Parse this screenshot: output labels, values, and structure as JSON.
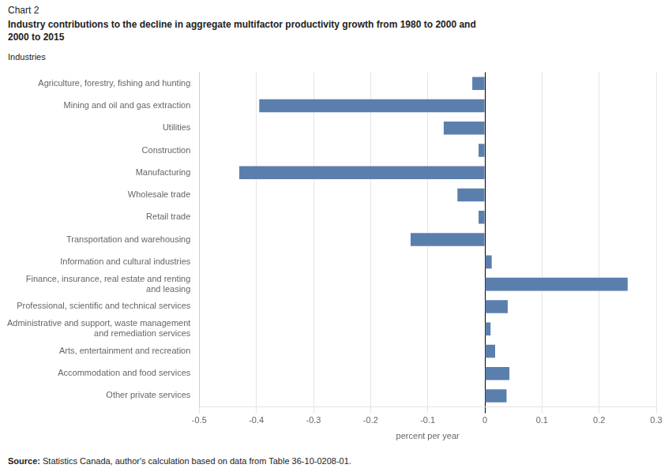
{
  "chart_data": {
    "type": "bar",
    "orientation": "horizontal",
    "title": "Chart 2",
    "subtitle": "Industry contributions  to the decline in aggregate multifactor productivity growth from 1980 to 2000 and\n2000 to 2015",
    "ylabel": "Industries",
    "xlabel": "percent per year",
    "annotations": [
      "Source:",
      "Statistics Canada, author's calculation based on data from Table 36-10-0208-01."
    ],
    "categories": [
      "Agriculture, forestry, fishing and hunting",
      "Mining and oil and gas extraction",
      "Utilities",
      "Construction",
      "Manufacturing",
      "Wholesale trade",
      "Retail trade",
      "Transportation and warehousing",
      "Information and cultural industries",
      "Finance, insurance, real estate and renting\nand leasing",
      "Professional, scientific and technical services",
      "Administrative and support, waste management\nand remediation services",
      "Arts, entertainment and recreation",
      "Accommodation and food services",
      "Other private services"
    ],
    "values": [
      -0.022,
      -0.395,
      -0.072,
      -0.011,
      -0.43,
      -0.048,
      -0.011,
      -0.13,
      0.012,
      0.25,
      0.04,
      0.01,
      0.018,
      0.043,
      0.038
    ],
    "color": "#5b7fad",
    "xlim": [
      -0.5,
      0.3
    ],
    "xticks": [
      -0.5,
      -0.4,
      -0.3,
      -0.2,
      -0.1,
      0.0,
      0.1,
      0.2,
      0.3
    ],
    "grid": true
  }
}
